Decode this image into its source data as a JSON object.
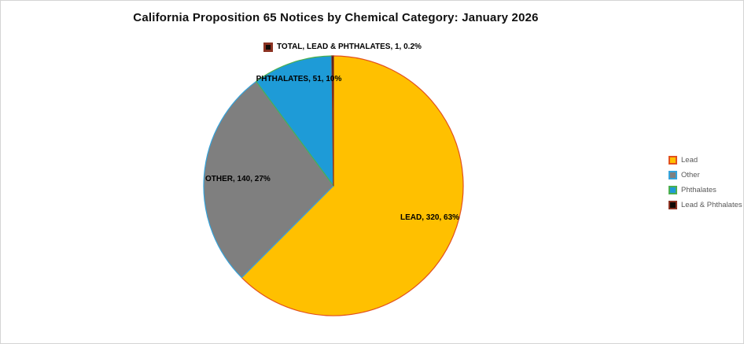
{
  "title": "California Proposition 65 Notices by Chemical Category: January 2026",
  "chart_data": {
    "type": "pie",
    "title": "California Proposition 65 Notices by Chemical Category: January 2026",
    "total": 512,
    "start_angle_deg": 0,
    "direction": "clockwise",
    "legend_position": "right",
    "slices": [
      {
        "name": "Lead",
        "value": 320,
        "percent_label": "63%",
        "fill": "#FFC000",
        "border": "#E2511E"
      },
      {
        "name": "Other",
        "value": 140,
        "percent_label": "27%",
        "fill": "#7F7F7F",
        "border": "#35A3DB"
      },
      {
        "name": "Phthalates",
        "value": 51,
        "percent_label": "10%",
        "fill": "#1E9BD7",
        "border": "#4CAF50"
      },
      {
        "name": "Lead & Phthalates",
        "value": 1,
        "percent_label": "0.2%",
        "fill": "#120A06",
        "border": "#8B3222"
      }
    ],
    "data_labels": {
      "lead_phthalates": "TOTAL, LEAD & PHTHALATES, 1, 0.2%",
      "phthalates": "PHTHALATES, 51, 10%",
      "other": "OTHER, 140, 27%",
      "lead": "LEAD, 320, 63%"
    }
  },
  "legend": {
    "text_color": "#595959",
    "items": [
      "Lead",
      "Other",
      "Phthalates",
      "Lead & Phthalates"
    ]
  },
  "frame": {
    "background": "#FFFFFF",
    "border_color": "#D4D4D4"
  }
}
